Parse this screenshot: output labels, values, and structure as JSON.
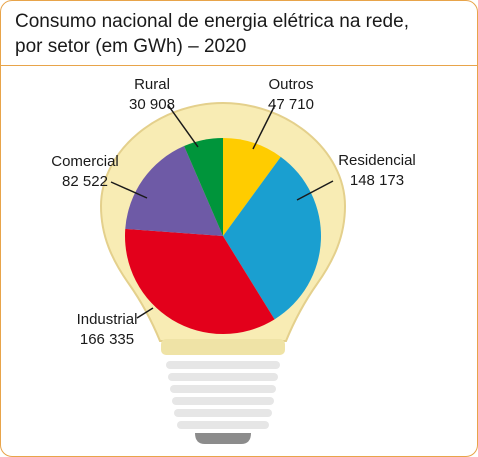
{
  "title": {
    "line1": "Consumo nacional de energia elétrica na rede,",
    "line2": "por setor (em GWh) – 2020"
  },
  "chart_data": {
    "type": "pie",
    "title": "Consumo nacional de energia elétrica na rede, por setor (em GWh) – 2020",
    "unit": "GWh",
    "slices": [
      {
        "name": "Outros",
        "value": 47710,
        "value_label": "47 710",
        "color": "#ffcc00"
      },
      {
        "name": "Residencial",
        "value": 148173,
        "value_label": "148 173",
        "color": "#1a9fd0"
      },
      {
        "name": "Industrial",
        "value": 166335,
        "value_label": "166 335",
        "color": "#e3001b"
      },
      {
        "name": "Comercial",
        "value": 82522,
        "value_label": "82 522",
        "color": "#6e5aa6"
      },
      {
        "name": "Rural",
        "value": 30908,
        "value_label": "30 908",
        "color": "#00953b"
      }
    ]
  },
  "colors": {
    "frame_border": "#e8a44a",
    "bulb_glass": "#f8ecb4",
    "bulb_rim": "#e4d08c",
    "screw_base": "#e6e6e6",
    "screw_tip": "#8c8c8c"
  }
}
